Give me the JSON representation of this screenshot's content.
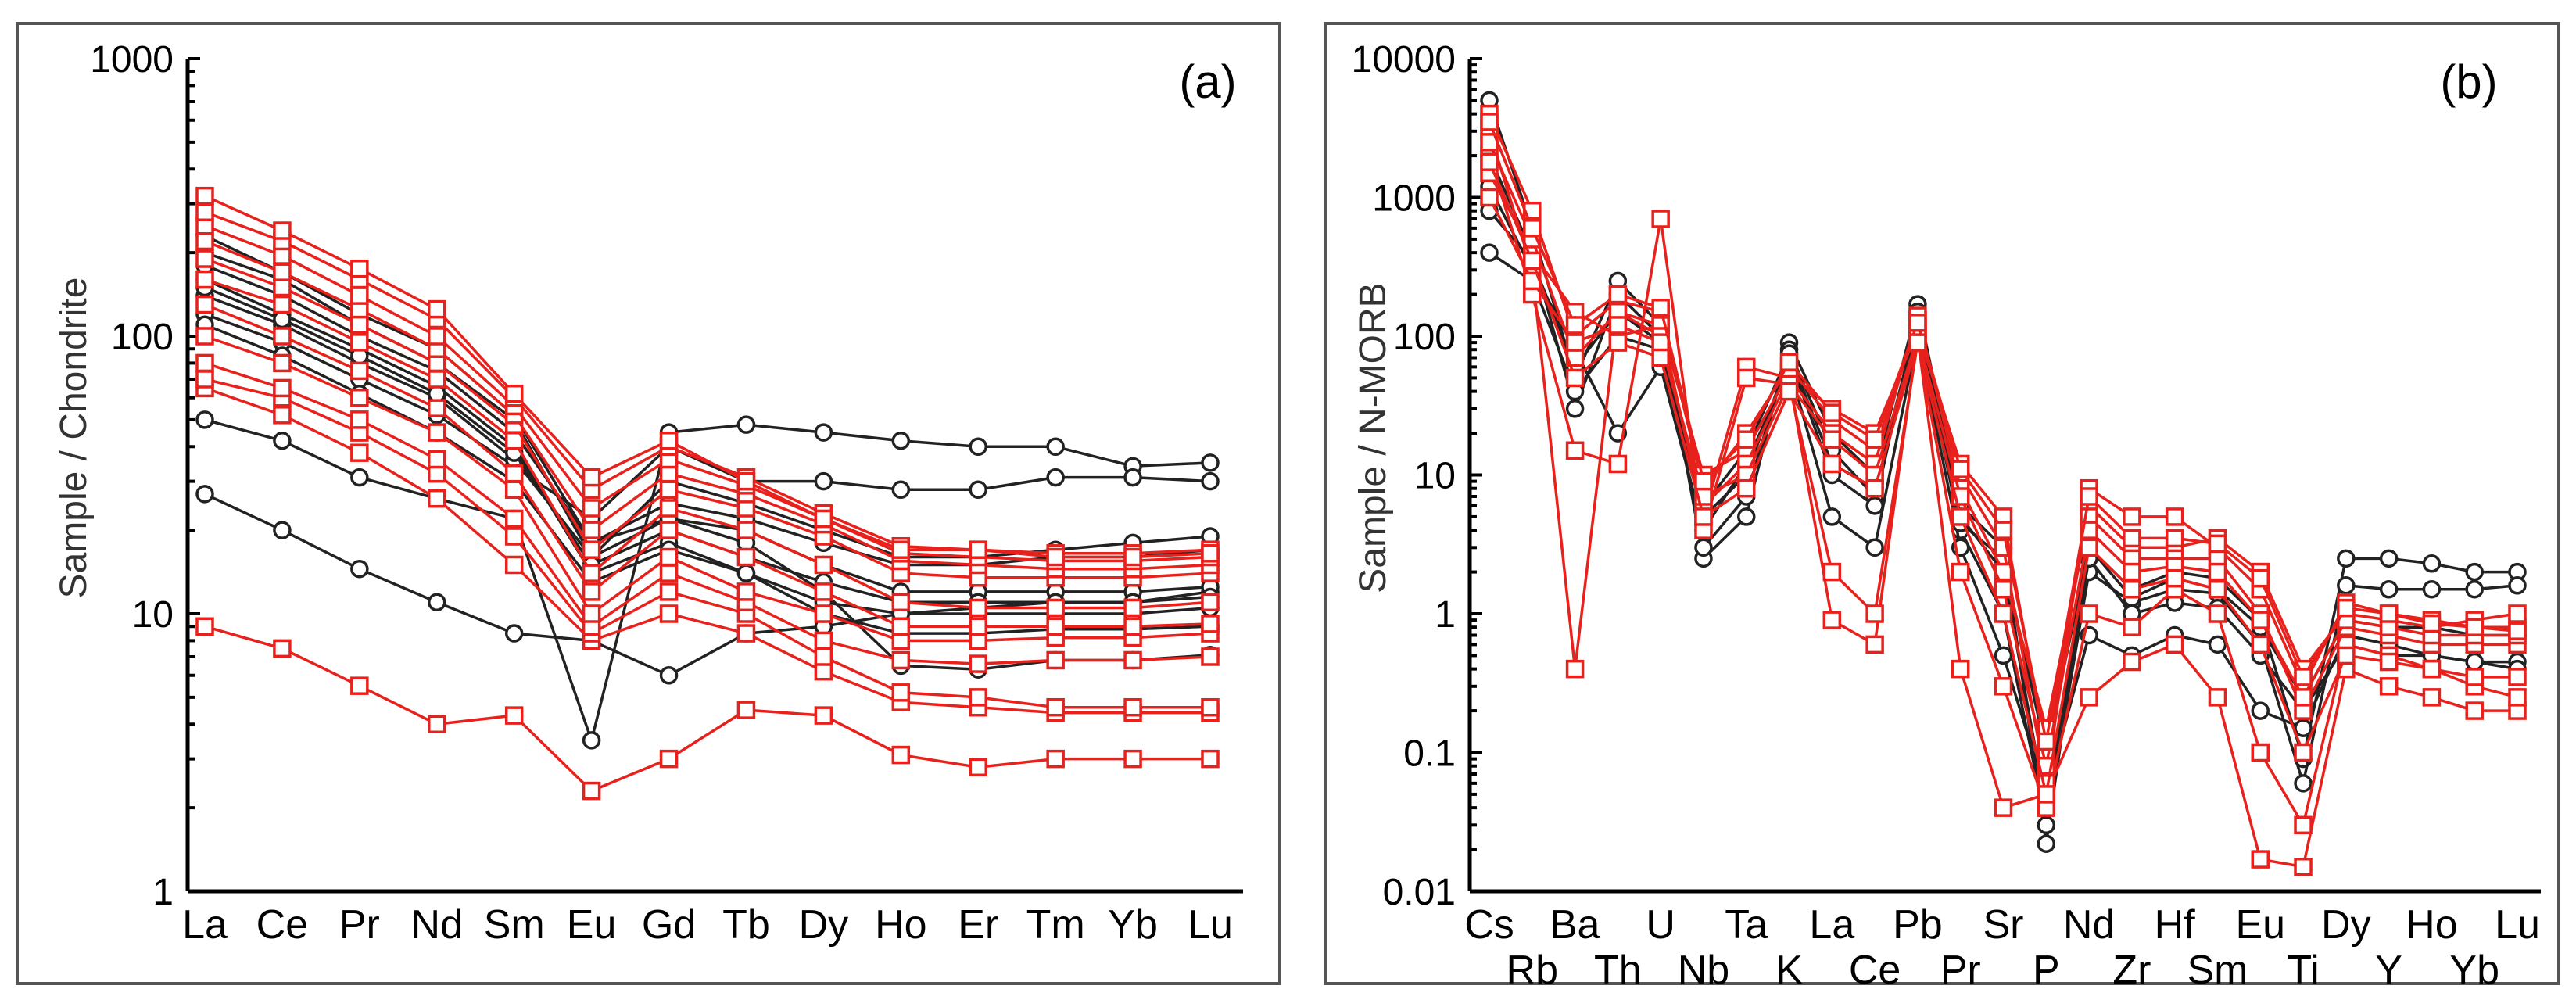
{
  "colors": {
    "granite": "#222222",
    "enclave": "#e8211c",
    "frame": "#555555"
  },
  "chart_data": [
    {
      "type": "line",
      "panel": "(a)",
      "ylabel": "Sample / Chondrite",
      "yscale": "log",
      "ylim": [
        1,
        1000
      ],
      "yticks": [
        "1",
        "10",
        "100",
        "1000"
      ],
      "categories": [
        "La",
        "Ce",
        "Pr",
        "Nd",
        "Sm",
        "Eu",
        "Gd",
        "Tb",
        "Dy",
        "Ho",
        "Er",
        "Tm",
        "Yb",
        "Lu"
      ],
      "series": [
        {
          "group": "black-circle",
          "values": [
            27,
            20,
            14.5,
            11,
            8.5,
            8,
            6,
            8.5,
            9,
            10,
            10.5,
            11,
            11,
            12
          ]
        },
        {
          "group": "black-circle",
          "values": [
            50,
            42,
            31,
            26,
            22,
            3.5,
            45,
            48,
            45,
            42,
            40,
            40,
            34,
            35
          ]
        },
        {
          "group": "black-circle",
          "values": [
            120,
            95,
            70,
            52,
            34,
            22,
            40,
            30,
            30,
            28,
            28,
            31,
            31,
            30
          ]
        },
        {
          "group": "black-circle",
          "values": [
            140,
            110,
            80,
            60,
            36,
            16,
            22,
            18,
            12,
            6.5,
            6.3,
            6.8,
            6.8,
            7.1
          ]
        },
        {
          "group": "black-circle",
          "values": [
            160,
            120,
            90,
            66,
            40,
            14,
            18,
            14,
            10,
            8.5,
            8.5,
            8.8,
            8.8,
            9
          ]
        },
        {
          "group": "black-circle",
          "values": [
            180,
            140,
            100,
            75,
            45,
            18,
            25,
            22,
            18,
            15,
            15,
            16,
            16,
            17
          ]
        },
        {
          "group": "black-circle",
          "values": [
            200,
            160,
            110,
            80,
            50,
            16,
            30,
            25,
            20,
            16,
            16,
            17,
            18,
            19
          ]
        },
        {
          "group": "black-circle",
          "values": [
            230,
            170,
            120,
            90,
            52,
            18,
            22,
            20,
            15,
            12,
            12,
            12,
            12,
            12.5
          ]
        },
        {
          "group": "black-circle",
          "values": [
            150,
            115,
            85,
            62,
            38,
            15,
            20,
            16,
            13,
            11,
            11,
            11,
            11,
            11.5
          ]
        },
        {
          "group": "black-circle",
          "values": [
            110,
            85,
            62,
            45,
            30,
            13,
            17,
            14,
            11,
            10,
            10,
            10,
            10,
            10.5
          ]
        },
        {
          "group": "red-square",
          "values": [
            9,
            7.5,
            5.5,
            4,
            4.3,
            2.3,
            3,
            4.5,
            4.3,
            3.1,
            2.8,
            3,
            3,
            3
          ]
        },
        {
          "group": "red-square",
          "values": [
            65,
            52,
            38,
            26,
            15,
            8,
            10,
            8.5,
            6.2,
            4.8,
            4.6,
            4.4,
            4.4,
            4.4
          ]
        },
        {
          "group": "red-square",
          "values": [
            70,
            60,
            45,
            32,
            19,
            8.5,
            12,
            10,
            7,
            5.2,
            5,
            4.6,
            4.6,
            4.6
          ]
        },
        {
          "group": "red-square",
          "values": [
            80,
            65,
            50,
            36,
            22,
            9,
            14,
            11,
            8,
            6.8,
            6.6,
            6.8,
            6.8,
            7
          ]
        },
        {
          "group": "red-square",
          "values": [
            100,
            80,
            60,
            45,
            28,
            10,
            16,
            12,
            10,
            8,
            8,
            8.2,
            8.2,
            8.5
          ]
        },
        {
          "group": "red-square",
          "values": [
            130,
            100,
            75,
            55,
            32,
            12,
            20,
            16,
            12,
            9,
            9,
            9,
            9,
            9.2
          ]
        },
        {
          "group": "red-square",
          "values": [
            160,
            130,
            95,
            70,
            42,
            14,
            24,
            20,
            15,
            11,
            10.5,
            10.5,
            10.5,
            11
          ]
        },
        {
          "group": "red-square",
          "values": [
            190,
            150,
            110,
            80,
            48,
            17,
            28,
            24,
            19,
            14,
            13.5,
            13.5,
            13.5,
            14
          ]
        },
        {
          "group": "red-square",
          "values": [
            220,
            170,
            125,
            90,
            52,
            20,
            32,
            27,
            21,
            15.5,
            15,
            14.5,
            14.5,
            15
          ]
        },
        {
          "group": "red-square",
          "values": [
            250,
            195,
            140,
            100,
            56,
            24,
            36,
            29,
            22,
            16.5,
            16,
            15.5,
            15.5,
            16
          ]
        },
        {
          "group": "red-square",
          "values": [
            280,
            220,
            160,
            115,
            60,
            28,
            40,
            31,
            23,
            17.5,
            17,
            16.5,
            16.5,
            17
          ]
        },
        {
          "group": "red-square",
          "values": [
            320,
            240,
            175,
            125,
            62,
            31,
            42,
            30,
            22,
            17,
            17,
            16,
            16,
            16.5
          ]
        }
      ]
    },
    {
      "type": "line",
      "panel": "(b)",
      "ylabel": "Sample / N-MORB",
      "yscale": "log",
      "ylim": [
        0.01,
        10000
      ],
      "yticks": [
        "0.01",
        "0.1",
        "1",
        "10",
        "100",
        "1000",
        "10000"
      ],
      "categories": [
        "Cs",
        "Rb",
        "Ba",
        "Th",
        "U",
        "Nb",
        "Ta",
        "K",
        "La",
        "Ce",
        "Pb",
        "Pr",
        "Sr",
        "P",
        "Nd",
        "Zr",
        "Hf",
        "Sm",
        "Eu",
        "Ti",
        "Dy",
        "Y",
        "Ho",
        "Yb",
        "Lu"
      ],
      "series": [
        {
          "group": "black-circle",
          "values": [
            5000,
            600,
            50,
            250,
            120,
            2.5,
            5,
            90,
            20,
            10,
            170,
            6,
            3,
            0.022,
            3,
            1.5,
            2,
            1.8,
            0.9,
            0.09,
            2.5,
            2.5,
            2.3,
            2,
            2
          ]
        },
        {
          "group": "black-circle",
          "values": [
            2000,
            400,
            30,
            200,
            100,
            3,
            7,
            80,
            15,
            7,
            120,
            4,
            1,
            0.03,
            2,
            1.2,
            1.5,
            1.4,
            0.6,
            0.06,
            1.6,
            1.5,
            1.5,
            1.5,
            1.6
          ]
        },
        {
          "group": "black-circle",
          "values": [
            1200,
            300,
            80,
            20,
            60,
            4,
            12,
            60,
            5,
            3,
            100,
            3,
            0.5,
            0.05,
            0.7,
            0.5,
            0.7,
            0.6,
            0.2,
            0.15,
            0.7,
            0.6,
            0.5,
            0.45,
            0.45
          ]
        },
        {
          "group": "black-circle",
          "values": [
            400,
            250,
            40,
            100,
            80,
            5,
            10,
            70,
            10,
            6,
            150,
            5,
            2,
            0.04,
            2.5,
            1,
            1.2,
            1.1,
            0.5,
            0.2,
            0.6,
            0.5,
            0.5,
            0.45,
            0.4
          ]
        },
        {
          "group": "black-circle",
          "values": [
            800,
            350,
            60,
            150,
            90,
            6,
            15,
            75,
            12,
            8,
            130,
            4.5,
            2.5,
            0.1,
            3,
            1.3,
            1.8,
            1.5,
            0.8,
            0.25,
            0.9,
            0.8,
            0.8,
            0.7,
            0.7
          ]
        },
        {
          "group": "red-square",
          "values": [
            3000,
            300,
            0.4,
            150,
            120,
            5,
            60,
            50,
            0.9,
            0.6,
            100,
            0.4,
            0.04,
            0.05,
            0.25,
            0.45,
            0.6,
            0.25,
            0.017,
            0.015,
            0.4,
            0.3,
            0.25,
            0.2,
            0.2
          ]
        },
        {
          "group": "red-square",
          "values": [
            2000,
            200,
            15,
            12,
            700,
            4,
            50,
            45,
            2,
            1,
            90,
            2,
            0.3,
            0.04,
            1,
            0.8,
            1.5,
            1,
            0.1,
            0.03,
            0.6,
            0.5,
            0.4,
            0.3,
            0.25
          ]
        },
        {
          "group": "red-square",
          "values": [
            4000,
            800,
            100,
            180,
            150,
            8,
            20,
            60,
            25,
            15,
            130,
            10,
            3,
            0.06,
            8,
            5,
            5,
            3,
            1.5,
            0.3,
            1.2,
            1,
            0.9,
            0.8,
            0.8
          ]
        },
        {
          "group": "red-square",
          "values": [
            1500,
            400,
            150,
            100,
            120,
            10,
            15,
            55,
            30,
            20,
            110,
            12,
            5,
            0.1,
            6,
            3,
            3,
            3.5,
            2,
            0.4,
            1,
            0.9,
            0.8,
            0.9,
            1
          ]
        },
        {
          "group": "red-square",
          "values": [
            2500,
            500,
            70,
            150,
            100,
            6,
            12,
            50,
            20,
            12,
            140,
            8,
            2,
            0.15,
            5,
            2.5,
            2.5,
            2.5,
            1,
            0.2,
            0.8,
            0.7,
            0.6,
            0.6,
            0.6
          ]
        },
        {
          "group": "red-square",
          "values": [
            1000,
            250,
            90,
            120,
            90,
            7,
            10,
            45,
            18,
            10,
            100,
            7,
            1.5,
            0.08,
            4,
            2,
            2.2,
            2,
            0.9,
            0.25,
            0.9,
            0.8,
            0.7,
            0.7,
            0.7
          ]
        },
        {
          "group": "red-square",
          "values": [
            3500,
            600,
            120,
            200,
            160,
            9,
            18,
            65,
            28,
            18,
            125,
            11,
            4,
            0.12,
            7,
            3.5,
            3.5,
            3.2,
            1.8,
            0.35,
            1.1,
            1,
            0.85,
            0.8,
            0.75
          ]
        },
        {
          "group": "red-square",
          "values": [
            1800,
            350,
            50,
            90,
            70,
            5,
            8,
            40,
            12,
            8,
            90,
            5,
            1,
            0.05,
            3,
            1.5,
            1.8,
            1.5,
            0.6,
            0.1,
            0.5,
            0.45,
            0.4,
            0.35,
            0.35
          ]
        }
      ]
    }
  ]
}
